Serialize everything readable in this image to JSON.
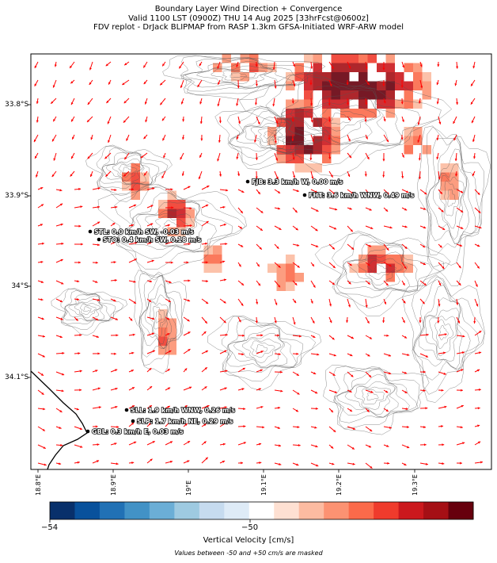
{
  "title": {
    "line1": "Boundary Layer Wind Direction + Convergence",
    "line2": "Valid 1100 LST (0900Z) THU 14 Aug 2025 [33hrFcst@0600z]",
    "line3": "FDV replot - DrJack BLIPMAP from RASP 1.3km GFSA-Initiated WRF-ARW model"
  },
  "axes": {
    "lat_labels": [
      "33.8°S",
      "33.9°S",
      "34°S",
      "34.1°S"
    ],
    "lon_labels": [
      "18.8°E",
      "18.9°E",
      "19°E",
      "19.1°E",
      "19.2°E",
      "19.3°E"
    ]
  },
  "stations": [
    {
      "label": "FJB: 3.3 km/h W, 0.00 m/s"
    },
    {
      "label": "FHT: 3.6 km/h WNW, 0.49 m/s"
    },
    {
      "label": "STL: 0.0 km/h SW, -0.03 m/s"
    },
    {
      "label": "STO: 0.4 km/h SW, 0.18 m/s"
    },
    {
      "label": "SLL: 1.9 km/h WNW, 0.26 m/s"
    },
    {
      "label": "SLP: 1.7 km/h NE, 0.29 m/s"
    },
    {
      "label": "GBL: 0.3 km/h E, 0.03 m/s"
    }
  ],
  "colorbar": {
    "min_label": "−54",
    "mid_label": "−50",
    "label": "Vertical Velocity [cm/s]",
    "note": "Values between -50 and +50 cm/s are masked",
    "colors": [
      "#08306b",
      "#08519c",
      "#2171b5",
      "#4292c6",
      "#6baed6",
      "#9ecae1",
      "#c6dbef",
      "#deebf7",
      "#ffffff",
      "#fee0d2",
      "#fcbba1",
      "#fc9272",
      "#fb6a4a",
      "#ef3b2c",
      "#cb181d",
      "#a50f15",
      "#67000d"
    ]
  },
  "colors": {
    "arrow": "#ff0000",
    "contour": "#555555",
    "coast": "#000000"
  }
}
